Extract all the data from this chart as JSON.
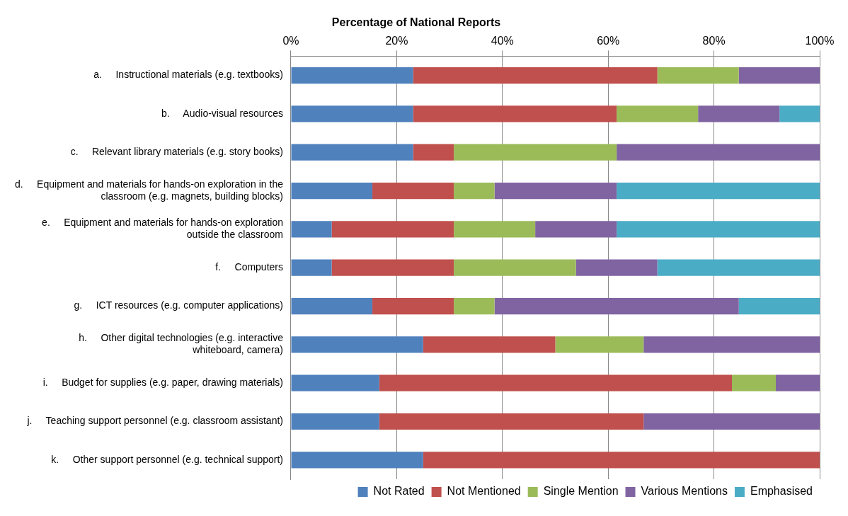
{
  "chart_data": {
    "type": "bar",
    "orientation": "horizontal",
    "stacked": true,
    "title": "Percentage of National Reports",
    "categories": [
      "a.     Instructional materials (e.g. textbooks)",
      "b.     Audio-visual resources",
      "c.     Relevant library materials (e.g. story books)",
      "d.     Equipment and materials for hands-on exploration in the classroom (e.g. magnets, building blocks)",
      "e.     Equipment and materials for hands-on exploration outside the classroom",
      "f.     Computers",
      "g.     ICT resources (e.g. computer applications)",
      "h.     Other digital technologies (e.g. interactive whiteboard, camera)",
      "i.     Budget for supplies (e.g. paper, drawing materials)",
      "j.     Teaching support personnel (e.g. classroom assistant)",
      "k.     Other support personnel (e.g. technical support)"
    ],
    "series": [
      {
        "name": "Not Rated",
        "color": "#4f81bd",
        "values": [
          23.1,
          23.1,
          23.1,
          15.4,
          7.7,
          7.7,
          15.4,
          25,
          16.7,
          16.7,
          25
        ]
      },
      {
        "name": "Not Mentioned",
        "color": "#c0504d",
        "values": [
          46.2,
          38.5,
          7.7,
          15.4,
          23.1,
          23.1,
          15.4,
          25,
          66.7,
          50,
          75
        ]
      },
      {
        "name": "Single Mention",
        "color": "#9bbb59",
        "values": [
          15.4,
          15.4,
          30.8,
          7.7,
          15.4,
          23.1,
          7.7,
          16.7,
          8.3,
          0,
          0
        ]
      },
      {
        "name": "Various Mentions",
        "color": "#8064a2",
        "values": [
          15.4,
          15.4,
          38.5,
          23.1,
          15.4,
          15.4,
          46.2,
          33.3,
          8.3,
          33.3,
          0
        ]
      },
      {
        "name": "Emphasised",
        "color": "#4bacc6",
        "values": [
          0,
          7.7,
          0,
          38.5,
          38.5,
          30.8,
          15.4,
          0,
          0,
          0,
          0
        ]
      }
    ],
    "xlim": [
      0,
      100
    ],
    "xticks": [
      {
        "value": 0,
        "label": "0%"
      },
      {
        "value": 20,
        "label": "20%"
      },
      {
        "value": 40,
        "label": "40%"
      },
      {
        "value": 60,
        "label": "60%"
      },
      {
        "value": 80,
        "label": "80%"
      },
      {
        "value": 100,
        "label": "100%"
      }
    ],
    "grid": "x",
    "legend": "bottom right"
  }
}
